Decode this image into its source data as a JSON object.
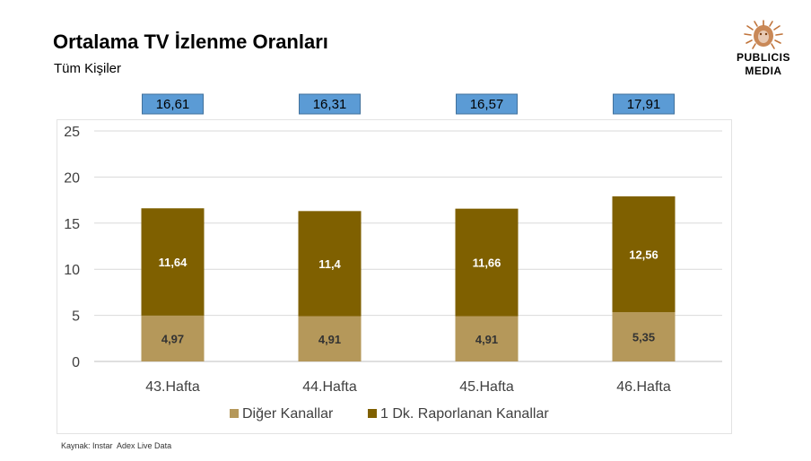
{
  "header": {
    "title": "Ortalama TV İzlenme Oranları",
    "subtitle": "Tüm Kişiler"
  },
  "logo": {
    "line1": "PUBLICIS",
    "line2": "MEDIA",
    "accent_color": "#c0733a"
  },
  "source": "Kaynak: Instar  Adex Live Data",
  "chart_data": {
    "type": "bar",
    "stacked": true,
    "categories": [
      "43.Hafta",
      "44.Hafta",
      "45.Hafta",
      "46.Hafta"
    ],
    "series": [
      {
        "name": "Diğer Kanallar",
        "values": [
          4.97,
          4.91,
          4.91,
          5.35
        ],
        "labels": [
          "4,97",
          "4,91",
          "4,91",
          "5,35"
        ],
        "color": "#b5985a",
        "label_color": "#333333"
      },
      {
        "name": "1 Dk. Raporlanan Kanallar",
        "values": [
          11.64,
          11.4,
          11.66,
          12.56
        ],
        "labels": [
          "11,64",
          "11,4",
          "11,66",
          "12,56"
        ],
        "color": "#7f6000",
        "label_color": "#ffffff"
      }
    ],
    "totals": [
      "16,61",
      "16,31",
      "16,57",
      "17,91"
    ],
    "total_box_color": "#5b9bd5",
    "ylim": [
      0,
      25
    ],
    "yticks": [
      "0",
      "5",
      "10",
      "15",
      "20",
      "25"
    ],
    "grid": true,
    "legend_position": "bottom"
  }
}
